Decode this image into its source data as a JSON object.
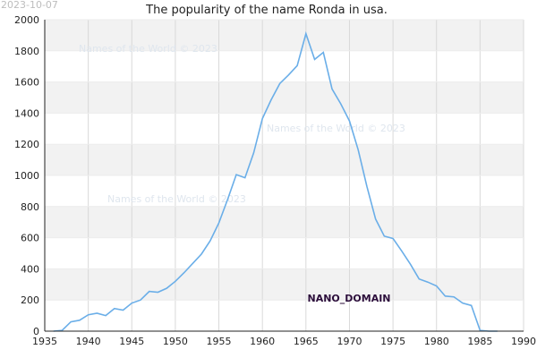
{
  "date_stamp": "2023-10-07",
  "watermark_text": "Names of the World © 2023",
  "site_label": "NANO_DOMAIN",
  "colors": {
    "line": "#6aaee8",
    "band": "#f2f2f2",
    "grid": "#d9d9d9",
    "axis": "#222222"
  },
  "chart_data": {
    "type": "line",
    "title": "The popularity of the name Ronda in usa.",
    "xlabel": "",
    "ylabel": "",
    "xlim": [
      1935,
      1990
    ],
    "ylim": [
      0,
      2000
    ],
    "x_ticks": [
      1935,
      1940,
      1945,
      1950,
      1955,
      1960,
      1965,
      1970,
      1975,
      1980,
      1985,
      1990
    ],
    "y_ticks": [
      0,
      200,
      400,
      600,
      800,
      1000,
      1200,
      1400,
      1600,
      1800,
      2000
    ],
    "grid": true,
    "legend": "none",
    "series": [
      {
        "x": [
          1936,
          1937,
          1938,
          1939,
          1940,
          1941,
          1942,
          1943,
          1944,
          1945,
          1946,
          1947,
          1948,
          1949,
          1950,
          1951,
          1952,
          1953,
          1954,
          1955,
          1956,
          1957,
          1958,
          1959,
          1960,
          1961,
          1962,
          1963,
          1964,
          1965,
          1966,
          1967,
          1968,
          1969,
          1970,
          1971,
          1972,
          1973,
          1974,
          1975,
          1976,
          1977,
          1978,
          1979,
          1980,
          1981,
          1982,
          1983,
          1984,
          1985,
          1986,
          1987
        ],
        "values": [
          0,
          5,
          60,
          70,
          105,
          115,
          100,
          145,
          135,
          180,
          200,
          255,
          250,
          275,
          320,
          375,
          435,
          495,
          580,
          695,
          845,
          1005,
          985,
          1145,
          1365,
          1485,
          1590,
          1645,
          1705,
          1910,
          1745,
          1790,
          1555,
          1460,
          1350,
          1165,
          930,
          720,
          610,
          595,
          515,
          430,
          335,
          315,
          290,
          225,
          220,
          180,
          165,
          5,
          0,
          0
        ]
      }
    ]
  }
}
